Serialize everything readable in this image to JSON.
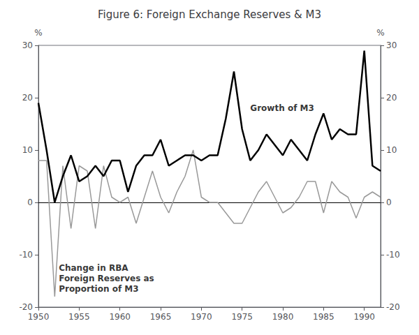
{
  "chart_data": {
    "type": "line",
    "title": "Figure 6: Foreign Exchange Reserves & M3",
    "ylabel": "%",
    "y2label": "%",
    "x": [
      1950,
      1951,
      1952,
      1953,
      1954,
      1955,
      1956,
      1957,
      1958,
      1959,
      1960,
      1961,
      1962,
      1963,
      1964,
      1965,
      1966,
      1967,
      1968,
      1969,
      1970,
      1971,
      1972,
      1973,
      1974,
      1975,
      1976,
      1977,
      1978,
      1979,
      1980,
      1981,
      1982,
      1983,
      1984,
      1985,
      1986,
      1987,
      1988,
      1989,
      1990,
      1991,
      1992
    ],
    "series": [
      {
        "color": "#000000",
        "values": [
          19,
          10,
          0,
          5,
          9,
          4,
          5,
          7,
          5,
          8,
          8,
          2,
          7,
          9,
          9,
          12,
          7,
          8,
          9,
          9,
          8,
          9,
          9,
          16,
          25,
          14,
          8,
          10,
          13,
          11,
          9,
          12,
          10,
          8,
          13,
          17,
          12,
          14,
          13,
          13,
          29,
          7,
          6
        ]
      },
      {
        "color": "#999999",
        "values": [
          8,
          8,
          -18,
          7,
          -5,
          7,
          6,
          -5,
          7,
          1,
          0,
          1,
          -4,
          1,
          6,
          1,
          -2,
          2,
          5,
          10,
          1,
          0,
          0,
          -2,
          -4,
          -4,
          -1,
          2,
          4,
          1,
          -2,
          -1,
          1,
          4,
          4,
          -2,
          4,
          2,
          1,
          -3,
          1,
          2,
          1
        ]
      }
    ],
    "xlim": [
      1950,
      1992
    ],
    "xticks": [
      1950,
      1955,
      1960,
      1965,
      1970,
      1975,
      1980,
      1985,
      1990
    ],
    "ylim": [
      -20,
      30
    ],
    "yticks": [
      -20,
      -10,
      0,
      10,
      20,
      30
    ],
    "y2lim": [
      -20,
      30
    ],
    "y2ticks": [
      -20,
      -10,
      0,
      10,
      20,
      30
    ],
    "grid": false,
    "legend": false,
    "annotations": [
      {
        "text": "Growth of M3",
        "x": 1976,
        "y": 19
      },
      {
        "text": "Change in RBA\nForeign Reserves as\nProportion of M3",
        "x": 1952.5,
        "y": -11.5
      }
    ]
  }
}
